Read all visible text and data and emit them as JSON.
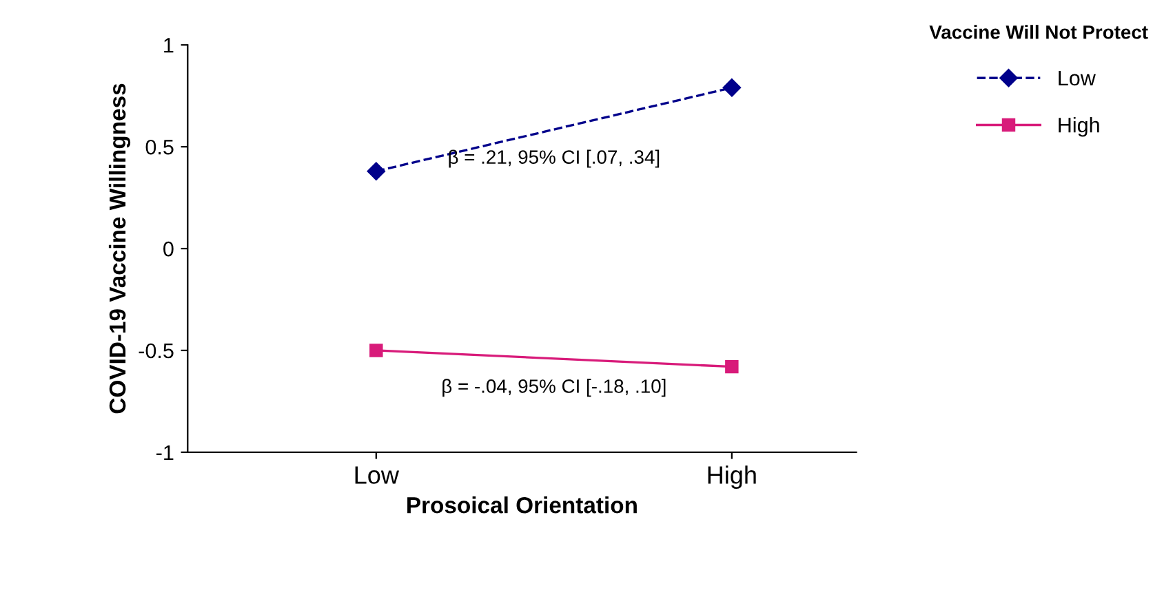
{
  "chart_data": {
    "type": "line",
    "xlabel": "Prosoical Orientation",
    "ylabel": "COVID-19 Vaccine Willingness",
    "legend_title": "Vaccine Will Not Protect",
    "categories": [
      "Low",
      "High"
    ],
    "series": [
      {
        "name": "Low",
        "color": "#00008b",
        "values": [
          0.38,
          0.79
        ],
        "marker": "diamond",
        "line_style": "dashed"
      },
      {
        "name": "High",
        "color": "#d81b7a",
        "values": [
          -0.5,
          -0.58
        ],
        "marker": "square",
        "line_style": "solid"
      }
    ],
    "annotations": [
      "β = .21, 95% CI [.07, .34]",
      "β = -.04, 95% CI [-.18, .10]"
    ],
    "ylim": [
      -1,
      1
    ],
    "yticks": [
      -1,
      -0.5,
      0,
      0.5,
      1
    ],
    "grid": false,
    "legend": "top right"
  }
}
